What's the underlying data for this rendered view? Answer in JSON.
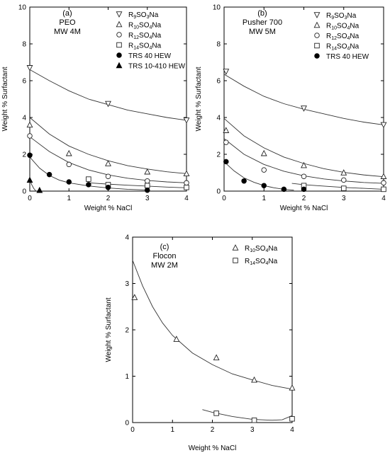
{
  "chart_data": [
    {
      "type": "scatter",
      "panel_label": "(a)",
      "annotation": [
        "PEO",
        "MW 4M"
      ],
      "xlabel": "Weight % NaCl",
      "ylabel": "Weight % Surfactant",
      "xlim": [
        0,
        4
      ],
      "ylim": [
        0,
        10
      ],
      "xticks": [
        "0",
        "1",
        "2",
        "3",
        "4"
      ],
      "yticks": [
        "0",
        "2",
        "4",
        "6",
        "8",
        "10"
      ],
      "legend_position": "top-right",
      "series": [
        {
          "name": "R9SO3Na",
          "label_parts": [
            [
              "R",
              "n"
            ],
            [
              "9",
              "s"
            ],
            [
              "SO",
              "n"
            ],
            [
              "3",
              "s"
            ],
            [
              "Na",
              "n"
            ]
          ],
          "marker": "triangle-down-open",
          "x": [
            0,
            2,
            4
          ],
          "y": [
            6.7,
            4.75,
            3.85
          ],
          "fit": {
            "x": [
              0,
              0.5,
              1,
              1.5,
              2,
              2.5,
              3,
              3.5,
              4
            ],
            "y": [
              6.6,
              6.0,
              5.45,
              5.0,
              4.7,
              4.4,
              4.2,
              4.0,
              3.85
            ]
          }
        },
        {
          "name": "R10SO4Na",
          "label_parts": [
            [
              "R",
              "n"
            ],
            [
              "10",
              "s"
            ],
            [
              "SO",
              "n"
            ],
            [
              "4",
              "s"
            ],
            [
              "Na",
              "n"
            ]
          ],
          "marker": "triangle-open",
          "x": [
            0,
            1,
            2,
            3,
            4
          ],
          "y": [
            3.6,
            2.05,
            1.5,
            1.05,
            0.95
          ],
          "fit": {
            "x": [
              0,
              0.5,
              1,
              1.5,
              2,
              2.5,
              3,
              3.5,
              4
            ],
            "y": [
              4.0,
              3.1,
              2.45,
              2.0,
              1.65,
              1.38,
              1.2,
              1.05,
              0.95
            ]
          }
        },
        {
          "name": "R12SO4Na",
          "label_parts": [
            [
              "R",
              "n"
            ],
            [
              "12",
              "s"
            ],
            [
              "SO",
              "n"
            ],
            [
              "4",
              "s"
            ],
            [
              "Na",
              "n"
            ]
          ],
          "marker": "circle-open",
          "x": [
            0,
            1,
            2,
            3,
            4
          ],
          "y": [
            3.0,
            1.45,
            0.8,
            0.55,
            0.45
          ],
          "fit": {
            "x": [
              0,
              0.5,
              1,
              1.5,
              2,
              2.5,
              3,
              3.5,
              4
            ],
            "y": [
              2.95,
              2.15,
              1.55,
              1.15,
              0.88,
              0.7,
              0.58,
              0.5,
              0.45
            ]
          }
        },
        {
          "name": "R14SO4Na",
          "label_parts": [
            [
              "R",
              "n"
            ],
            [
              "14",
              "s"
            ],
            [
              "SO",
              "n"
            ],
            [
              "4",
              "s"
            ],
            [
              "Na",
              "n"
            ]
          ],
          "marker": "square-open",
          "x": [
            1.5,
            2,
            3,
            4
          ],
          "y": [
            0.65,
            0.35,
            0.3,
            0.2
          ],
          "fit": {
            "x": [
              1.5,
              2,
              2.5,
              3,
              3.5,
              4
            ],
            "y": [
              0.45,
              0.38,
              0.32,
              0.27,
              0.22,
              0.18
            ]
          }
        },
        {
          "name": "TRS 40 HEW",
          "label_parts": [
            [
              "TRS 40 HEW",
              "n"
            ]
          ],
          "marker": "circle-filled",
          "x": [
            0,
            0.5,
            1,
            1.5,
            2,
            3
          ],
          "y": [
            1.95,
            0.9,
            0.5,
            0.35,
            0.2,
            0.05
          ],
          "fit": {
            "x": [
              0,
              0.25,
              0.5,
              0.75,
              1,
              1.5,
              2,
              2.5,
              3
            ],
            "y": [
              1.85,
              1.25,
              0.85,
              0.6,
              0.45,
              0.28,
              0.17,
              0.1,
              0.06
            ]
          }
        },
        {
          "name": "TRS 10-410 HEW",
          "label_parts": [
            [
              "TRS 10-410 HEW",
              "n"
            ]
          ],
          "marker": "triangle-filled",
          "x": [
            0,
            0.25
          ],
          "y": [
            0.6,
            0.05
          ],
          "fit": {
            "x": [
              0,
              0.05,
              0.1,
              0.15
            ],
            "y": [
              0.6,
              0.35,
              0.15,
              0.02
            ]
          }
        }
      ]
    },
    {
      "type": "scatter",
      "panel_label": "(b)",
      "annotation": [
        "Pusher 700",
        "MW 5M"
      ],
      "xlabel": "Weight % NaCl",
      "ylabel": "Weight % Surfactant",
      "xlim": [
        0,
        4
      ],
      "ylim": [
        0,
        10
      ],
      "xticks": [
        "0",
        "1",
        "2",
        "3",
        "4"
      ],
      "yticks": [
        "0",
        "2",
        "4",
        "6",
        "8",
        "10"
      ],
      "legend_position": "top-right",
      "series": [
        {
          "name": "R9SO3Na",
          "label_parts": [
            [
              "R",
              "n"
            ],
            [
              "9",
              "s"
            ],
            [
              "SO",
              "n"
            ],
            [
              "3",
              "s"
            ],
            [
              "Na",
              "n"
            ]
          ],
          "marker": "triangle-down-open",
          "x": [
            0.05,
            2,
            4
          ],
          "y": [
            6.5,
            4.5,
            3.6
          ],
          "fit": {
            "x": [
              0,
              0.5,
              1,
              1.5,
              2,
              2.5,
              3,
              3.5,
              4
            ],
            "y": [
              6.35,
              5.7,
              5.15,
              4.75,
              4.45,
              4.2,
              3.95,
              3.75,
              3.6
            ]
          }
        },
        {
          "name": "R10SO4Na",
          "label_parts": [
            [
              "R",
              "n"
            ],
            [
              "10",
              "s"
            ],
            [
              "SO",
              "n"
            ],
            [
              "4",
              "s"
            ],
            [
              "Na",
              "n"
            ]
          ],
          "marker": "triangle-open",
          "x": [
            0.05,
            1,
            2,
            3,
            4
          ],
          "y": [
            3.3,
            2.05,
            1.4,
            1.0,
            0.8
          ],
          "fit": {
            "x": [
              0,
              0.5,
              1,
              1.5,
              2,
              2.5,
              3,
              3.5,
              4
            ],
            "y": [
              3.95,
              3.0,
              2.35,
              1.85,
              1.5,
              1.22,
              1.02,
              0.88,
              0.78
            ]
          }
        },
        {
          "name": "R12SO4Na",
          "label_parts": [
            [
              "R",
              "n"
            ],
            [
              "12",
              "s"
            ],
            [
              "SO",
              "n"
            ],
            [
              "4",
              "s"
            ],
            [
              "Na",
              "n"
            ]
          ],
          "marker": "circle-open",
          "x": [
            0.05,
            1,
            2,
            3,
            4
          ],
          "y": [
            2.65,
            1.15,
            0.8,
            0.6,
            0.45
          ],
          "fit": {
            "x": [
              0,
              0.5,
              1,
              1.5,
              2,
              2.5,
              3,
              3.5,
              4
            ],
            "y": [
              2.85,
              2.0,
              1.45,
              1.08,
              0.83,
              0.66,
              0.55,
              0.47,
              0.42
            ]
          }
        },
        {
          "name": "R14SO4Na",
          "label_parts": [
            [
              "R",
              "n"
            ],
            [
              "14",
              "s"
            ],
            [
              "SO",
              "n"
            ],
            [
              "4",
              "s"
            ],
            [
              "Na",
              "n"
            ]
          ],
          "marker": "square-open",
          "x": [
            2,
            3,
            4
          ],
          "y": [
            0.3,
            0.15,
            0.1
          ],
          "fit": {
            "x": [
              1.7,
              2,
              2.5,
              3,
              3.5,
              4
            ],
            "y": [
              0.42,
              0.35,
              0.27,
              0.2,
              0.15,
              0.1
            ]
          }
        },
        {
          "name": "TRS 40 HEW",
          "label_parts": [
            [
              "TRS 40 HEW",
              "n"
            ]
          ],
          "marker": "circle-filled",
          "x": [
            0.05,
            0.5,
            1,
            1.5,
            2
          ],
          "y": [
            1.6,
            0.55,
            0.3,
            0.1,
            0.1
          ],
          "fit": {
            "x": [
              0,
              0.25,
              0.5,
              0.75,
              1,
              1.25,
              1.5,
              1.75
            ],
            "y": [
              1.6,
              1.1,
              0.72,
              0.48,
              0.3,
              0.18,
              0.1,
              0.05
            ]
          }
        }
      ]
    },
    {
      "type": "scatter",
      "panel_label": "(c)",
      "annotation": [
        "Flocon",
        "MW 2M"
      ],
      "xlabel": "Weight % NaCl",
      "ylabel": "Weight % Surfactant",
      "xlim": [
        0,
        4
      ],
      "ylim": [
        0,
        4
      ],
      "xticks": [
        "0",
        "1",
        "2",
        "3",
        "4"
      ],
      "yticks": [
        "0",
        "1",
        "2",
        "3",
        "4"
      ],
      "legend_position": "top-right",
      "series": [
        {
          "name": "R10SO4Na",
          "label_parts": [
            [
              "R",
              "n"
            ],
            [
              "10",
              "s"
            ],
            [
              "SO",
              "n"
            ],
            [
              "4",
              "s"
            ],
            [
              "Na",
              "n"
            ]
          ],
          "marker": "triangle-open",
          "x": [
            0.05,
            1.1,
            2.1,
            3.05,
            4
          ],
          "y": [
            2.7,
            1.8,
            1.4,
            0.92,
            0.75
          ],
          "fit": {
            "x": [
              0,
              0.25,
              0.5,
              0.75,
              1,
              1.5,
              2,
              2.5,
              3,
              3.5,
              4
            ],
            "y": [
              3.5,
              2.95,
              2.5,
              2.15,
              1.88,
              1.5,
              1.25,
              1.05,
              0.92,
              0.8,
              0.72
            ]
          }
        },
        {
          "name": "R14SO4Na",
          "label_parts": [
            [
              "R",
              "n"
            ],
            [
              "14",
              "s"
            ],
            [
              "SO",
              "n"
            ],
            [
              "4",
              "s"
            ],
            [
              "Na",
              "n"
            ]
          ],
          "marker": "square-open",
          "x": [
            2.1,
            3.05,
            4
          ],
          "y": [
            0.2,
            0.05,
            0.08
          ],
          "fit": {
            "x": [
              1.75,
              2,
              2.5,
              3,
              3.5,
              3.75,
              4
            ],
            "y": [
              0.28,
              0.22,
              0.13,
              0.07,
              0.05,
              0.06,
              0.15
            ]
          }
        }
      ]
    }
  ]
}
